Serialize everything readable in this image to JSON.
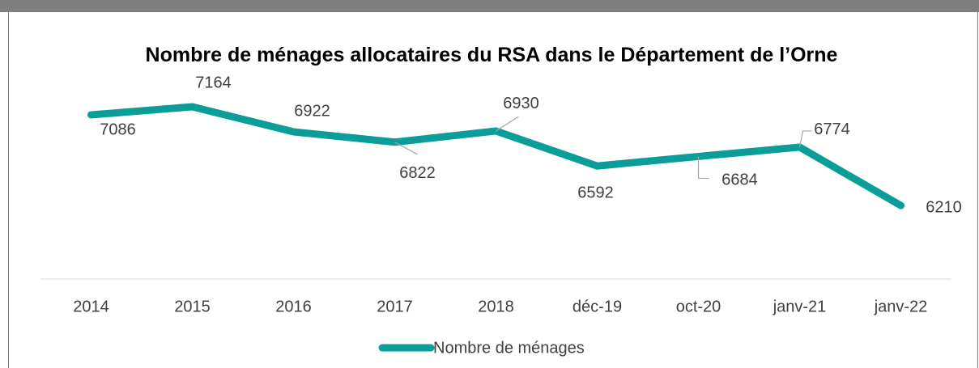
{
  "chart_data": {
    "type": "line",
    "title": "Nombre de ménages allocataires du RSA dans le Département de l’Orne",
    "categories": [
      "2014",
      "2015",
      "2016",
      "2017",
      "2018",
      "déc-19",
      "oct-20",
      "janv-21",
      "janv-22"
    ],
    "series": [
      {
        "name": "Nombre de ménages",
        "color": "#0b9e99",
        "values": [
          7086,
          7164,
          6922,
          6822,
          6930,
          6592,
          6684,
          6774,
          6210
        ]
      }
    ],
    "ylim": [
      5500,
      7500
    ],
    "legend": "bottom"
  }
}
